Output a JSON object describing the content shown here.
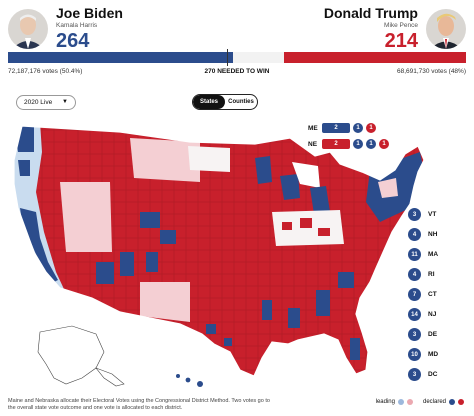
{
  "biden": {
    "name": "Joe Biden",
    "running_mate": "Kamala Harris",
    "electoral_votes": "264",
    "popular_votes": "72,187,176 votes (50.4%)",
    "color": "#2b4c8c"
  },
  "trump": {
    "name": "Donald Trump",
    "running_mate": "Mike Pence",
    "electoral_votes": "214",
    "popular_votes": "68,691,730 votes (48%)",
    "color": "#c8202c"
  },
  "progress": {
    "dem_electoral": 264,
    "rep_electoral": 214,
    "total_electoral": 538
  },
  "to_win_label": "270 NEEDED TO WIN",
  "controls": {
    "year_selected": "2020 Live",
    "view_toggle": [
      {
        "label": "States",
        "active": true
      },
      {
        "label": "Counties",
        "active": false
      }
    ]
  },
  "districts": {
    "maine": {
      "label": "ME",
      "statewide": "2",
      "d1": "1",
      "d2": "1"
    },
    "nebraska": {
      "label": "NE",
      "statewide": "2",
      "d1": "1",
      "d2": "1",
      "d3": "1"
    }
  },
  "small_states": [
    {
      "abbr": "VT",
      "votes": "3"
    },
    {
      "abbr": "NH",
      "votes": "4"
    },
    {
      "abbr": "MA",
      "votes": "11"
    },
    {
      "abbr": "RI",
      "votes": "4"
    },
    {
      "abbr": "CT",
      "votes": "7"
    },
    {
      "abbr": "NJ",
      "votes": "14"
    },
    {
      "abbr": "DE",
      "votes": "3"
    },
    {
      "abbr": "MD",
      "votes": "10"
    },
    {
      "abbr": "DC",
      "votes": "3"
    }
  ],
  "footnote": "Maine and Nebraska allocate their Electoral Votes using the Congressional District Method. Two votes go to the overall state vote outcome and one vote is allocated to each district.",
  "legend": {
    "leading": "leading",
    "declared": "declared"
  },
  "colors": {
    "dem": "#2b4c8c",
    "rep": "#c8202c",
    "dem_light": "#c9dcef",
    "rep_light": "#f4cfd3",
    "neutral": "#f2f2f2"
  }
}
